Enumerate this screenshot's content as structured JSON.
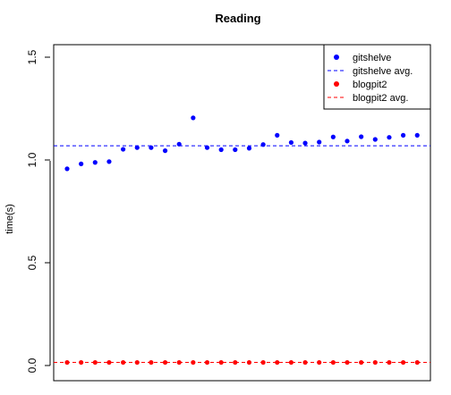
{
  "chart_data": {
    "type": "scatter",
    "title": "Reading",
    "xlabel": "",
    "ylabel": "time(s)",
    "ylim": [
      0.0,
      1.55
    ],
    "yticks": [
      "0.0",
      "0.5",
      "1.0",
      "1.5"
    ],
    "x": [
      1,
      2,
      3,
      4,
      5,
      6,
      7,
      8,
      9,
      10,
      11,
      12,
      13,
      14,
      15,
      16,
      17,
      18,
      19,
      20,
      21,
      22,
      23,
      24,
      25,
      26
    ],
    "series": [
      {
        "name": "gitshelve",
        "color": "#0000ff",
        "values": [
          0.957,
          0.981,
          0.988,
          0.992,
          1.052,
          1.06,
          1.06,
          1.045,
          1.077,
          1.205,
          1.06,
          1.05,
          1.05,
          1.057,
          1.075,
          1.12,
          1.085,
          1.082,
          1.087,
          1.112,
          1.092,
          1.113,
          1.1,
          1.11,
          1.12,
          1.12
        ]
      },
      {
        "name": "blogpit2",
        "color": "#ff0000",
        "values": [
          0.015,
          0.015,
          0.015,
          0.015,
          0.015,
          0.015,
          0.015,
          0.015,
          0.015,
          0.015,
          0.015,
          0.015,
          0.015,
          0.015,
          0.015,
          0.015,
          0.015,
          0.015,
          0.015,
          0.015,
          0.015,
          0.015,
          0.015,
          0.015,
          0.015,
          0.015
        ]
      }
    ],
    "averages": [
      {
        "name": "gitshelve avg.",
        "value": 1.069,
        "color": "#0000ff"
      },
      {
        "name": "blogpit2 avg.",
        "value": 0.015,
        "color": "#ff0000"
      }
    ],
    "legend": {
      "position": "top-right",
      "entries": [
        {
          "label": "gitshelve",
          "kind": "point",
          "color": "#0000ff"
        },
        {
          "label": "gitshelve avg.",
          "kind": "dashed-line",
          "color": "#0000ff"
        },
        {
          "label": "blogpit2",
          "kind": "point",
          "color": "#ff0000"
        },
        {
          "label": "blogpit2 avg.",
          "kind": "dashed-line",
          "color": "#ff0000"
        }
      ]
    },
    "grid": false
  }
}
